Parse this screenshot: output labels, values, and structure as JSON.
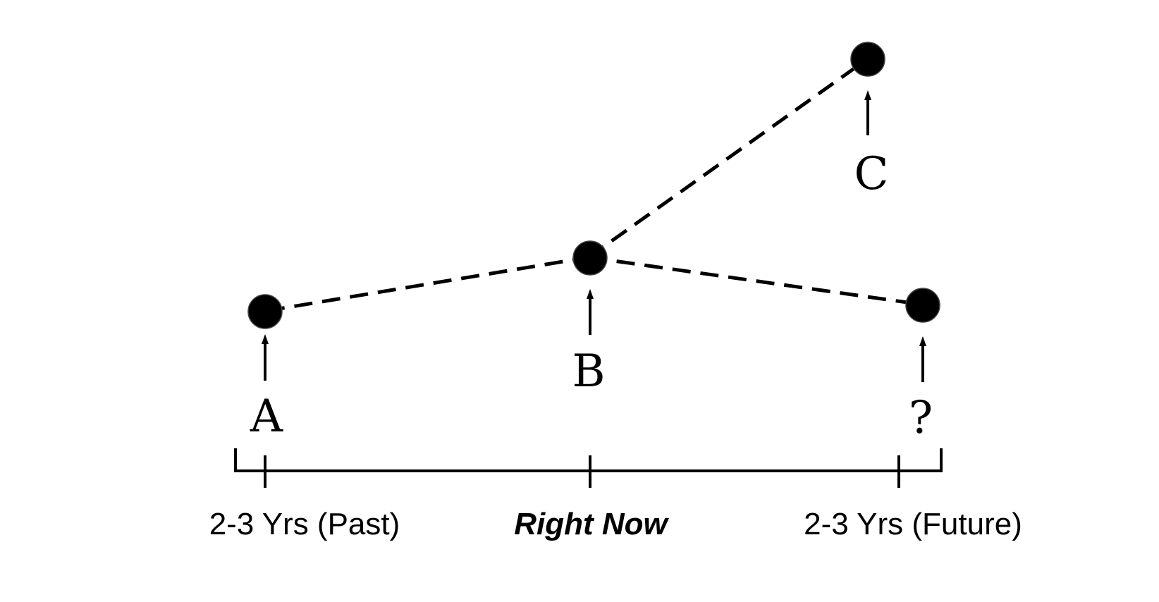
{
  "diagram": {
    "nodes": [
      {
        "id": "A",
        "label": "A"
      },
      {
        "id": "B",
        "label": "B"
      },
      {
        "id": "C",
        "label": "C"
      },
      {
        "id": "D",
        "label": "?"
      }
    ],
    "edges": [
      {
        "from": "A",
        "to": "B",
        "style": "dashed"
      },
      {
        "from": "B",
        "to": "C",
        "style": "dashed"
      },
      {
        "from": "B",
        "to": "D",
        "style": "dashed"
      }
    ],
    "timeline": {
      "past_label": "2-3 Yrs (Past)",
      "now_label": "Right Now",
      "future_label": "2-3 Yrs (Future)"
    }
  }
}
